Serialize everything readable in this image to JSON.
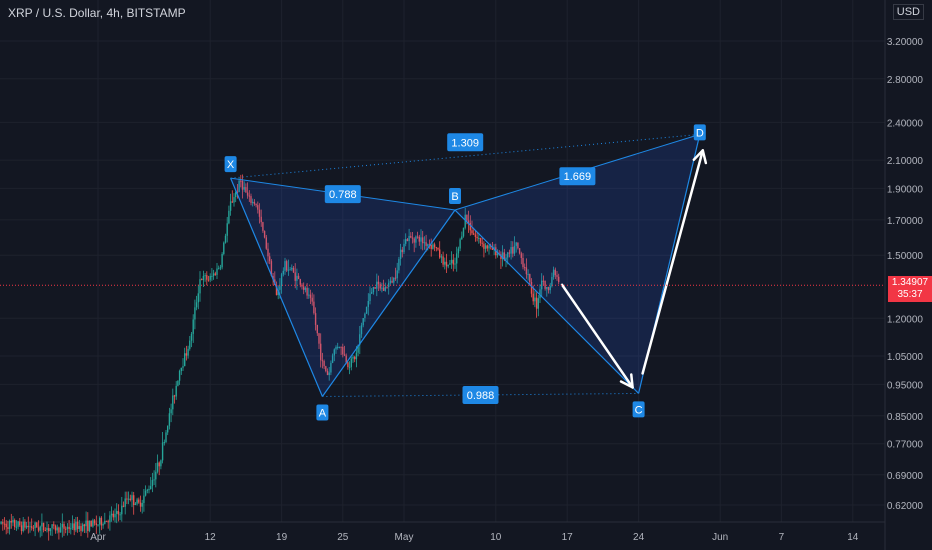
{
  "header": {
    "title": "XRP / U.S. Dollar, 4h, BITSTAMP",
    "currency": "USD"
  },
  "price_tag": {
    "price": "1.34907",
    "countdown": "35:37"
  },
  "colors": {
    "background": "#131722",
    "grid": "#1e222d",
    "up": "#26a69a",
    "down": "#ef5350",
    "pattern_fill": "#2962ff",
    "pattern_line": "#1e88e5",
    "label_bg": "#1e88e5",
    "arrow": "#ffffff",
    "price_line": "#f23645"
  },
  "chart_data": {
    "type": "candlestick",
    "y_scale": "log",
    "yaxis": {
      "ticks": [
        "3.20000",
        "2.80000",
        "2.40000",
        "2.10000",
        "1.90000",
        "1.70000",
        "1.50000",
        "1.20000",
        "1.05000",
        "0.95000",
        "0.85000",
        "0.77000",
        "0.69000",
        "0.62000"
      ]
    },
    "xaxis": {
      "ticks": [
        "Apr",
        "12",
        "19",
        "25",
        "May",
        "10",
        "17",
        "24",
        "Jun",
        "7",
        "14"
      ]
    },
    "last_price": 1.34907,
    "harmonic_pattern": {
      "points": [
        {
          "label": "X",
          "date": "2021-04-14",
          "price": 1.97
        },
        {
          "label": "A",
          "date": "2021-04-23",
          "price": 0.91
        },
        {
          "label": "B",
          "date": "2021-05-06",
          "price": 1.76
        },
        {
          "label": "C",
          "date": "2021-05-24",
          "price": 0.92
        },
        {
          "label": "D",
          "date": "2021-05-30",
          "price": 2.3
        }
      ],
      "ratios": [
        {
          "value": "0.788"
        },
        {
          "value": "1.309"
        },
        {
          "value": "1.669"
        },
        {
          "value": "0.988"
        }
      ]
    }
  }
}
